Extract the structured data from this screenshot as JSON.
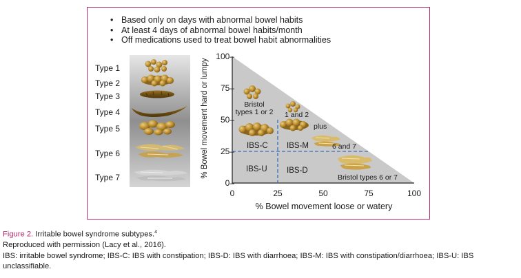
{
  "bullets": [
    "Based only on days with abnormal bowel habits",
    "At least 4 days of abnormal bowel habits/month",
    "Off medications used to treat bowel habit abnormalities"
  ],
  "bristol_types": [
    "Type 1",
    "Type 2",
    "Type 3",
    "Type 4",
    "Type 5",
    "Type 6",
    "Type 7"
  ],
  "chart_data": {
    "type": "scatter",
    "xlabel": "% Bowel movement loose or watery",
    "ylabel": "% Bowel movement hard or lumpy",
    "xlim": [
      0,
      100
    ],
    "ylim": [
      0,
      100
    ],
    "x_ticks": [
      "0",
      "25",
      "50",
      "75",
      "100"
    ],
    "y_ticks": [
      "0–",
      "25–",
      "50–",
      "75–",
      "100–"
    ],
    "tick_values": [
      0,
      25,
      50,
      75,
      100
    ],
    "boundary_lines": [
      {
        "axis": "x",
        "value": 25
      },
      {
        "axis": "y",
        "value": 25
      }
    ],
    "region_labels": [
      "IBS-C",
      "IBS-M",
      "IBS-U",
      "IBS-D"
    ],
    "annotations": [
      "Bristol types 1 or 2",
      "1 and 2",
      "plus",
      "6 and 7",
      "Bristol types 6 or 7"
    ]
  },
  "caption": {
    "figure_number": "Figure 2.",
    "title": "Irritable bowel syndrome subtypes.",
    "title_ref": "4",
    "permission": "Reproduced with permission (Lacy et al., 2016).",
    "abbreviations": "IBS: irritable bowel syndrome; IBS-C: IBS with constipation; IBS-D: IBS with diarrhoea; IBS-M: IBS with constipation/diarrhoea; IBS-U: IBS unclassifiable."
  },
  "colors": {
    "frame": "#b5286e",
    "triangle": "#c9c9c9",
    "dashed_line": "#3b6fb8",
    "stool": "#b98a2a",
    "stool_dark": "#7d5716",
    "stool_light": "#dcc07a"
  }
}
